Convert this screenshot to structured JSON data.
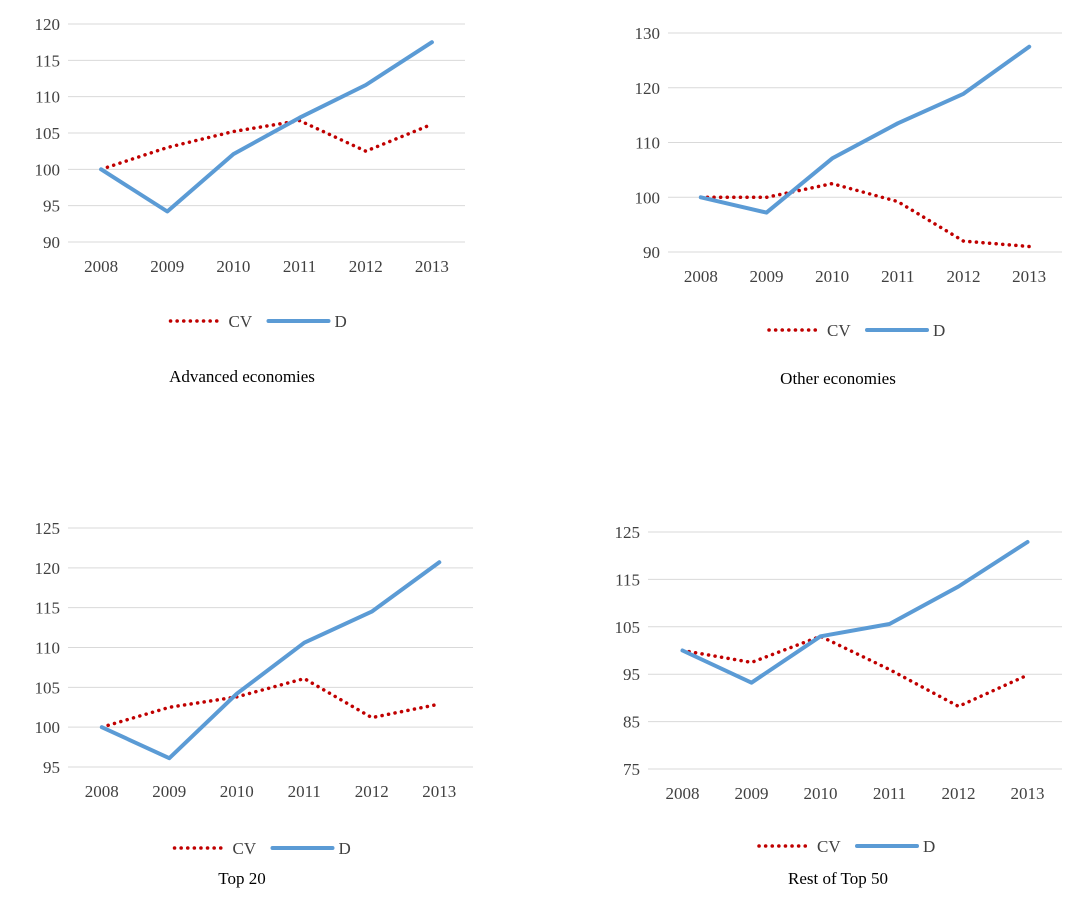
{
  "chart_data": [
    {
      "type": "line",
      "caption": "Advanced economies",
      "categories": [
        "2008",
        "2009",
        "2010",
        "2011",
        "2012",
        "2013"
      ],
      "yticks": [
        90,
        95,
        100,
        105,
        110,
        115,
        120
      ],
      "ylim": [
        90,
        120
      ],
      "grid": true,
      "legend": "bottom",
      "series": [
        {
          "name": "CV",
          "style": "dotted",
          "color": "#C00000",
          "values": [
            100,
            103,
            105.2,
            106.7,
            102.5,
            106.2
          ]
        },
        {
          "name": "D",
          "style": "solid",
          "color": "#5B9BD5",
          "values": [
            100,
            94.2,
            102.1,
            107.1,
            111.6,
            117.5
          ]
        }
      ]
    },
    {
      "type": "line",
      "caption": "Other economies",
      "categories": [
        "2008",
        "2009",
        "2010",
        "2011",
        "2012",
        "2013"
      ],
      "yticks": [
        90,
        100,
        110,
        120,
        130
      ],
      "ylim": [
        90,
        130
      ],
      "grid": true,
      "legend": "bottom",
      "series": [
        {
          "name": "CV",
          "style": "dotted",
          "color": "#C00000",
          "values": [
            100,
            100,
            102.5,
            99.2,
            92,
            91
          ]
        },
        {
          "name": "D",
          "style": "solid",
          "color": "#5B9BD5",
          "values": [
            100,
            97.2,
            107.1,
            113.5,
            118.9,
            127.5
          ]
        }
      ]
    },
    {
      "type": "line",
      "caption": "Top 20",
      "categories": [
        "2008",
        "2009",
        "2010",
        "2011",
        "2012",
        "2013"
      ],
      "yticks": [
        95,
        100,
        105,
        110,
        115,
        120,
        125
      ],
      "ylim": [
        95,
        125
      ],
      "grid": true,
      "legend": "bottom",
      "series": [
        {
          "name": "CV",
          "style": "dotted",
          "color": "#C00000",
          "values": [
            100,
            102.5,
            103.8,
            106.1,
            101.2,
            102.9
          ]
        },
        {
          "name": "D",
          "style": "solid",
          "color": "#5B9BD5",
          "values": [
            100,
            96.1,
            104.2,
            110.6,
            114.5,
            120.7
          ]
        }
      ]
    },
    {
      "type": "line",
      "caption": "Rest of Top 50",
      "categories": [
        "2008",
        "2009",
        "2010",
        "2011",
        "2012",
        "2013"
      ],
      "yticks": [
        75,
        85,
        95,
        105,
        115,
        125
      ],
      "ylim": [
        75,
        125
      ],
      "grid": true,
      "legend": "bottom",
      "series": [
        {
          "name": "CV",
          "style": "dotted",
          "color": "#C00000",
          "values": [
            100,
            97.5,
            103,
            96,
            88.2,
            94.8
          ]
        },
        {
          "name": "D",
          "style": "solid",
          "color": "#5B9BD5",
          "values": [
            100,
            93.2,
            103,
            105.6,
            113.5,
            122.9
          ]
        }
      ]
    }
  ]
}
